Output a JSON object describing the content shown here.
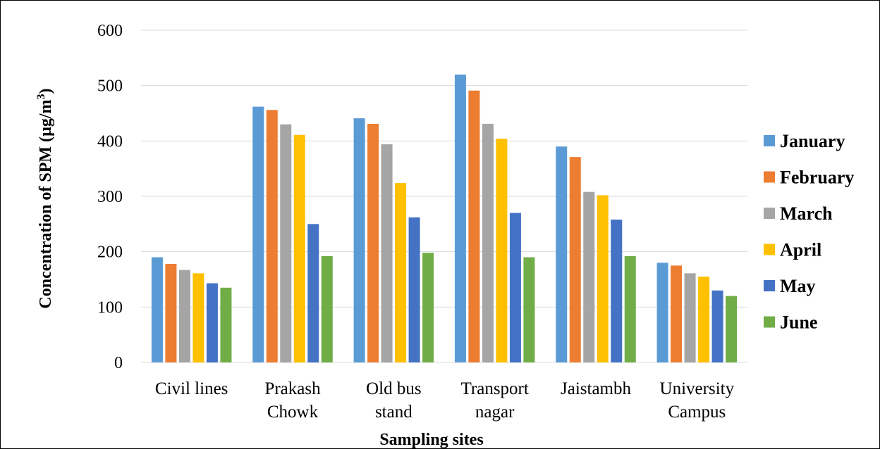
{
  "chart_data": {
    "type": "bar",
    "categories": [
      [
        "Civil lines"
      ],
      [
        "Prakash",
        "Chowk"
      ],
      [
        "Old bus",
        "stand"
      ],
      [
        "Transport",
        "nagar"
      ],
      [
        "Jaistambh"
      ],
      [
        "University",
        "Campus"
      ]
    ],
    "series": [
      {
        "name": "January",
        "color": "#5b9bd5",
        "values": [
          190,
          462,
          441,
          520,
          390,
          180
        ]
      },
      {
        "name": "February",
        "color": "#ed7d31",
        "values": [
          178,
          456,
          431,
          491,
          371,
          175
        ]
      },
      {
        "name": "March",
        "color": "#a5a5a5",
        "values": [
          167,
          430,
          394,
          431,
          308,
          161
        ]
      },
      {
        "name": "April",
        "color": "#ffc000",
        "values": [
          161,
          411,
          324,
          404,
          302,
          155
        ]
      },
      {
        "name": "May",
        "color": "#4472c4",
        "values": [
          143,
          250,
          262,
          270,
          258,
          130
        ]
      },
      {
        "name": "June",
        "color": "#70ad47",
        "values": [
          135,
          192,
          198,
          190,
          192,
          120
        ]
      }
    ],
    "xlabel": "Sampling sites",
    "ylabel": "Concentration of  SPM (µg/m3)",
    "ylim": [
      0,
      600
    ],
    "yticks": [
      0,
      100,
      200,
      300,
      400,
      500,
      600
    ],
    "grid": true,
    "legend_position": "right"
  }
}
